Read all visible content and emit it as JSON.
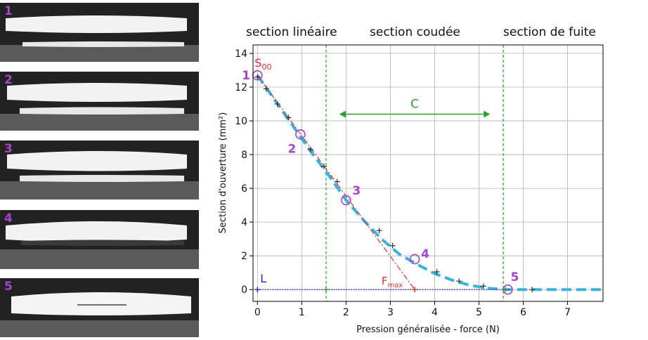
{
  "photos": [
    {
      "label": "1"
    },
    {
      "label": "2"
    },
    {
      "label": "3"
    },
    {
      "label": "4"
    },
    {
      "label": "5"
    }
  ],
  "section_headers": [
    "section linéaire",
    "section coudée",
    "section de fuite"
  ],
  "colors": {
    "accent_purple": "#a645c9",
    "curve_blue": "#33b5de",
    "linear_red": "#e03030",
    "boundary_green": "#2ca02c",
    "baseline_blue": "#2222cc"
  },
  "chart_data": {
    "type": "line",
    "xlabel": "Pression généralisée - force (N)",
    "ylabel": "Section d'ouverture (mm²)",
    "xlim": [
      -0.1,
      7.8
    ],
    "ylim": [
      -0.7,
      14.5
    ],
    "xticks": [
      0,
      1,
      2,
      3,
      4,
      5,
      6,
      7
    ],
    "yticks": [
      0,
      2,
      4,
      6,
      8,
      10,
      12,
      14
    ],
    "grid": true,
    "series": [
      {
        "style": "dashed-thick",
        "color": "#33b5de",
        "x": [
          0,
          0.4,
          0.8,
          1.2,
          1.6,
          2.0,
          2.4,
          2.8,
          3.2,
          3.6,
          4.0,
          4.4,
          4.8,
          5.2,
          5.6,
          6.0,
          6.4,
          6.8,
          7.2,
          7.8
        ],
        "y": [
          12.7,
          11.2,
          9.7,
          8.2,
          6.8,
          5.3,
          4.1,
          3.0,
          2.1,
          1.5,
          0.95,
          0.55,
          0.25,
          0.08,
          0.0,
          0.0,
          0.0,
          0.0,
          0.0,
          0.0
        ]
      },
      {
        "style": "dashdot",
        "color": "#e03030",
        "x": [
          0,
          3.55
        ],
        "y": [
          12.7,
          0
        ]
      },
      {
        "style": "dotted",
        "color": "#2222cc",
        "x": [
          0,
          5.7
        ],
        "y": [
          0,
          0
        ]
      }
    ],
    "measured_points": {
      "x": [
        0,
        0.2,
        0.45,
        0.7,
        1.2,
        1.5,
        1.8,
        2.75,
        3.05,
        4.05,
        4.55,
        5.1,
        6.2
      ],
      "y": [
        12.6,
        11.9,
        11.0,
        10.2,
        8.3,
        7.3,
        6.4,
        3.5,
        2.6,
        1.05,
        0.5,
        0.2,
        0.0
      ]
    },
    "baseline_points": {
      "x": [
        0,
        1.55,
        3.55,
        5.6
      ],
      "y": [
        0,
        0,
        0,
        0
      ]
    },
    "vertical_lines": [
      1.55,
      5.55
    ],
    "arrow": {
      "x1": 1.85,
      "x2": 5.25,
      "y": 10.4,
      "label": "C"
    },
    "circled_points": [
      {
        "label": "1",
        "x": 0.0,
        "y": 12.7
      },
      {
        "label": "2",
        "x": 0.97,
        "y": 9.2
      },
      {
        "label": "3",
        "x": 2.0,
        "y": 5.3
      },
      {
        "label": "4",
        "x": 3.55,
        "y": 1.8
      },
      {
        "label": "5",
        "x": 5.65,
        "y": 0.0
      }
    ],
    "annotations": {
      "s00": "S",
      "s00_sub": "00",
      "fmax": "F",
      "fmax_sub": "max",
      "l": "L"
    }
  }
}
